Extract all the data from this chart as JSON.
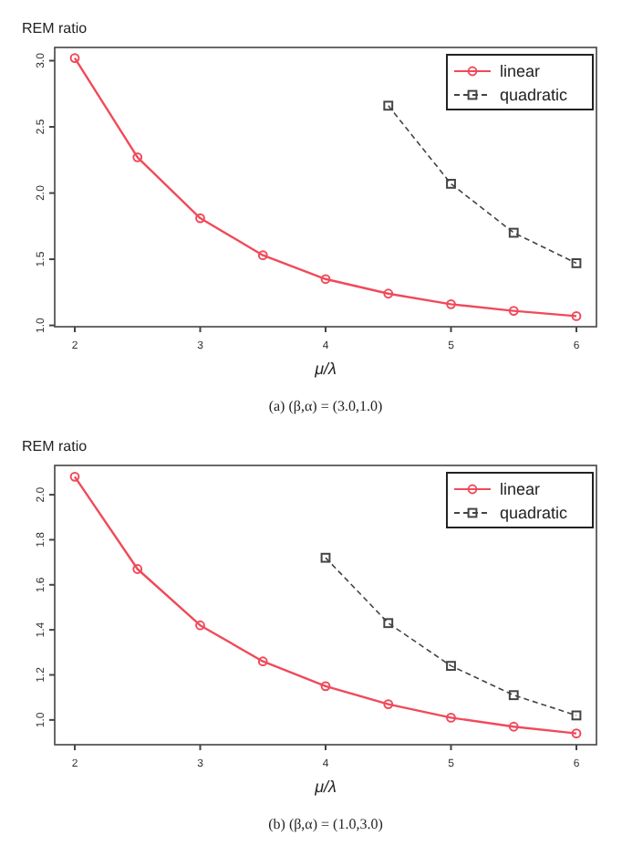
{
  "chart_data": [
    {
      "type": "line",
      "ylabel": "REM ratio",
      "xlabel": "μ/λ",
      "annotations": [
        "(a)  (β,α) = (3.0,1.0)"
      ],
      "xlim": [
        1.84,
        6.16
      ],
      "xticks": [
        2,
        3,
        4,
        5,
        6
      ],
      "ylim": [
        0.99,
        3.1
      ],
      "yticks": [
        {
          "value": 1,
          "label": "1.0"
        },
        1.5,
        {
          "value": 2,
          "label": "2.0"
        },
        2.5,
        {
          "value": 3,
          "label": "3.0"
        }
      ],
      "legend": "top right",
      "grid": false,
      "series": [
        {
          "name": "linear",
          "color": "#f04a5a",
          "marker": "circle",
          "line_style": "solid",
          "x": [
            2,
            2.5,
            3,
            3.5,
            4,
            4.5,
            5,
            5.5,
            6
          ],
          "values": [
            3.02,
            2.27,
            1.81,
            1.53,
            1.35,
            1.24,
            1.16,
            1.11,
            1.07
          ]
        },
        {
          "name": "quadratic",
          "color": "#444444",
          "marker": "square",
          "line_style": "dashed",
          "x": [
            4.5,
            5,
            5.5,
            6
          ],
          "values": [
            2.66,
            2.07,
            1.7,
            1.47
          ]
        }
      ]
    },
    {
      "type": "line",
      "ylabel": "REM ratio",
      "xlabel": "μ/λ",
      "annotations": [
        "(b)  (β,α) = (1.0,3.0)"
      ],
      "xlim": [
        1.84,
        6.16
      ],
      "xticks": [
        2,
        3,
        4,
        5,
        6
      ],
      "ylim": [
        0.89,
        2.13
      ],
      "yticks": [
        {
          "value": 1,
          "label": "1.0"
        },
        1.2,
        1.4,
        1.6,
        1.8,
        {
          "value": 2,
          "label": "2.0"
        }
      ],
      "legend": "top right",
      "grid": false,
      "series": [
        {
          "name": "linear",
          "color": "#f04a5a",
          "marker": "circle",
          "line_style": "solid",
          "x": [
            2,
            2.5,
            3,
            3.5,
            4,
            4.5,
            5,
            5.5,
            6
          ],
          "values": [
            2.08,
            1.67,
            1.42,
            1.26,
            1.15,
            1.07,
            1.01,
            0.97,
            0.94
          ]
        },
        {
          "name": "quadratic",
          "color": "#444444",
          "marker": "square",
          "line_style": "dashed",
          "x": [
            4,
            4.5,
            5,
            5.5,
            6
          ],
          "values": [
            1.72,
            1.43,
            1.24,
            1.11,
            1.02
          ]
        }
      ]
    }
  ]
}
